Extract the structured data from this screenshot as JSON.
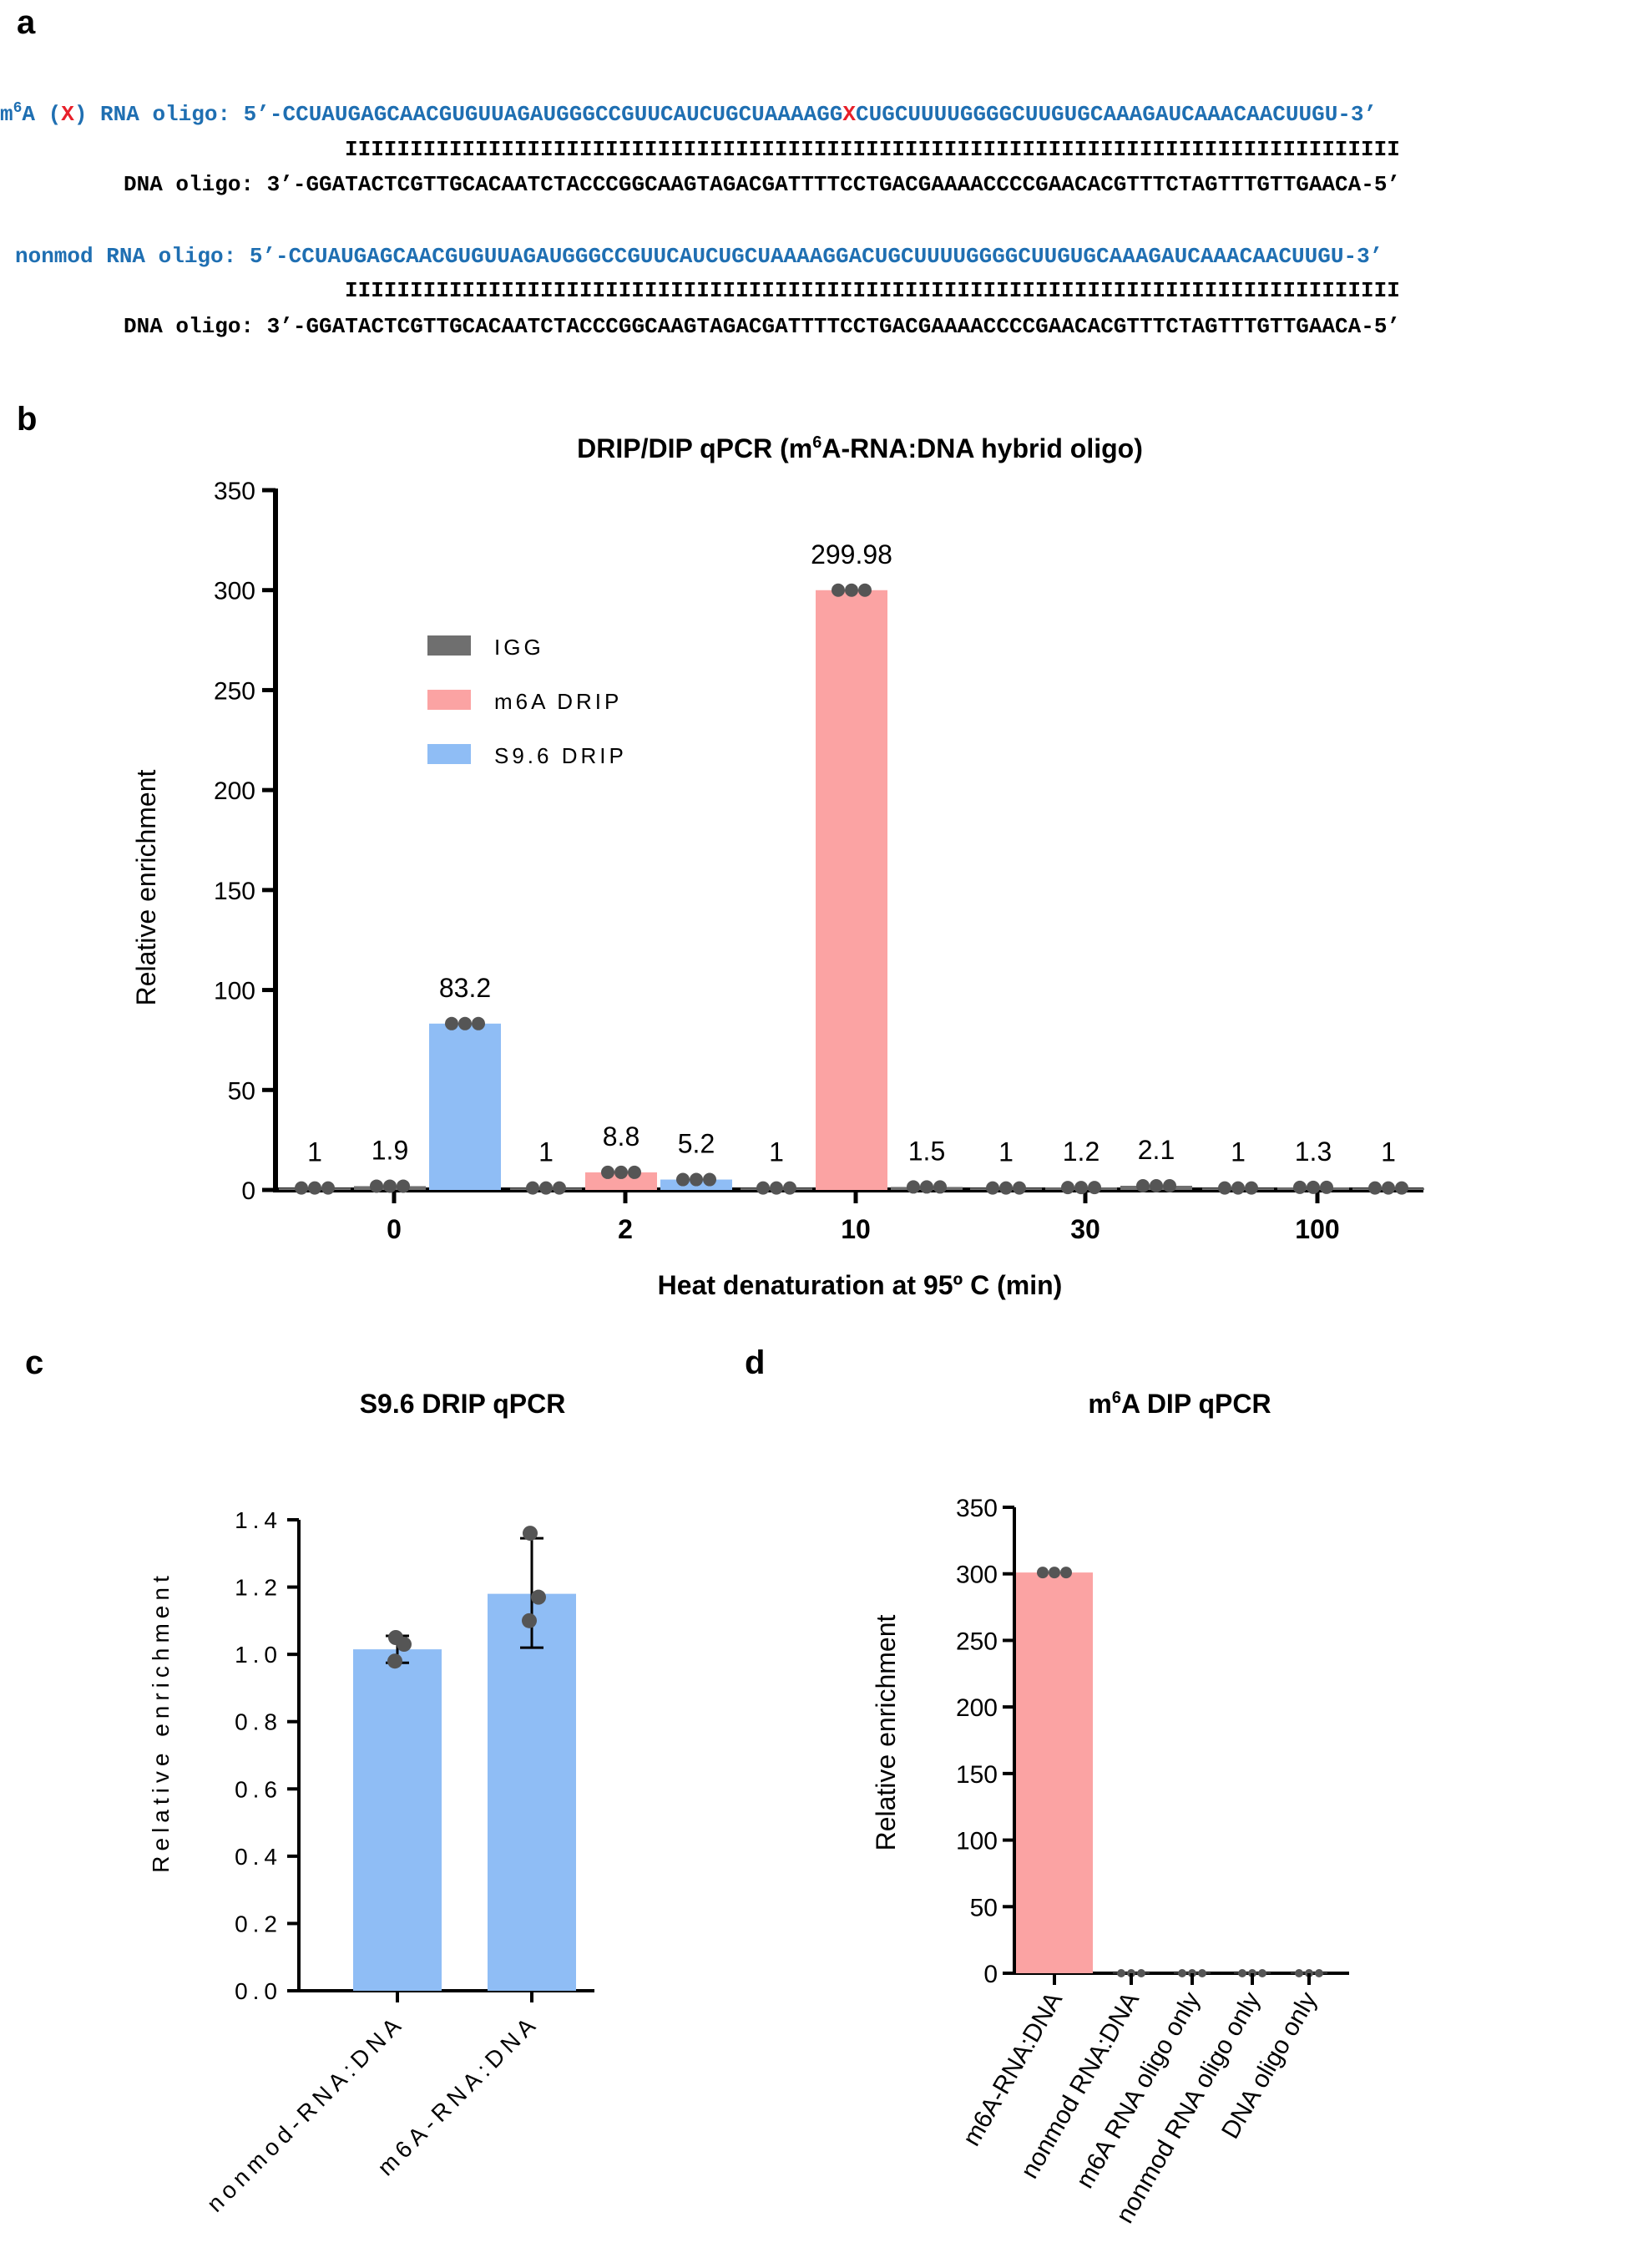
{
  "panel_a": {
    "label": "a",
    "pairs": [
      {
        "rna_prefix_1": "m",
        "rna_prefix_sup": "6",
        "rna_prefix_2": "A (",
        "rna_marker": "X",
        "rna_prefix_3": ") RNA oligo: 5’-",
        "rna_seq_a": "CCUAUGAGCAACGUGUUAGAUGGGCCGUUCAUCUGCUAAAAGG",
        "rna_seq_mark": "X",
        "rna_seq_b": "CUGCUUUUGGGGCUUGUGCAAAGAUCAAACAACUUGU-3’",
        "bars": "IIIIIIIIIIIIIIIIIIIIIIIIIIIIIIIIIIIIIIIIIIIIIIIIIIIIIIIIIIIIIIIIIIIIIIIIIIIIIIIII",
        "dna_label": "DNA oligo: 3’-",
        "dna_seq": "GGATACTCGTTGCACAATCTACCCGGCAAGTAGACGATTTTCCTGACGAAAACCCCGAACACGTTTCTAGTTTGTTGAACA-5’"
      },
      {
        "rna_label": "nonmod RNA oligo: 5’-",
        "rna_seq": "CCUAUGAGCAACGUGUUAGAUGGGCCGUUCAUCUGCUAAAAGGACUGCUUUUGGGGCUUGUGCAAAGAUCAAACAACUUGU-3’",
        "bars": "IIIIIIIIIIIIIIIIIIIIIIIIIIIIIIIIIIIIIIIIIIIIIIIIIIIIIIIIIIIIIIIIIIIIIIIIIIIIIIIII",
        "dna_label": "DNA oligo: 3’-",
        "dna_seq": "GGATACTCGTTGCACAATCTACCCGGCAAGTAGACGATTTTCCTGACGAAAACCCCGAACACGTTTCTAGTTTGTTGAACA-5’"
      }
    ]
  },
  "colors": {
    "igg": "#6f6f6f",
    "m6a": "#fba3a3",
    "s96": "#8fbdf5",
    "dot": "#555555",
    "blue_text": "#1f6fb2",
    "red": "#e8202a"
  },
  "chart_data": [
    {
      "panel": "b",
      "type": "bar",
      "title_pre": "DRIP/DIP qPCR (m",
      "title_sup": "6",
      "title_post": "A-RNA:DNA hybrid oligo)",
      "xlabel": "Heat denaturation at 95º C (min)",
      "ylabel": "Relative enrichment",
      "ylim": [
        0,
        350
      ],
      "yticks": [
        "0",
        "50",
        "100",
        "150",
        "200",
        "250",
        "300",
        "350"
      ],
      "categories": [
        "0",
        "2",
        "10",
        "30",
        "100"
      ],
      "legend": [
        "IGG",
        "m6A DRIP",
        "S9.6 DRIP"
      ],
      "series": [
        {
          "name": "IGG",
          "values": [
            1,
            1,
            1,
            1,
            1
          ]
        },
        {
          "name": "m6A DRIP",
          "values": [
            1.9,
            8.8,
            299.98,
            1.2,
            1.3
          ]
        },
        {
          "name": "S9.6 DRIP",
          "values": [
            83.2,
            5.2,
            1.5,
            2.1,
            1
          ]
        }
      ],
      "data_labels": [
        [
          "1",
          "1.9",
          "83.2"
        ],
        [
          "1",
          "8.8",
          "5.2"
        ],
        [
          "1",
          "299.98",
          "1.5"
        ],
        [
          "1",
          "1.2",
          "2.1"
        ],
        [
          "1",
          "1.3",
          "1"
        ]
      ]
    },
    {
      "panel": "c",
      "type": "bar",
      "title": "S9.6 DRIP qPCR",
      "ylabel": "Relative enrichment",
      "ylim": [
        0,
        1.4
      ],
      "yticks": [
        "0.0",
        "0.2",
        "0.4",
        "0.6",
        "0.8",
        "1.0",
        "1.2",
        "1.4"
      ],
      "categories": [
        "nonmod-RNA:DNA",
        "m6A-RNA:DNA"
      ],
      "values": [
        1.015,
        1.18
      ],
      "errors": [
        [
          0.975,
          1.055
        ],
        [
          1.02,
          1.345
        ]
      ],
      "points": [
        [
          1.05,
          1.03,
          0.98
        ],
        [
          1.36,
          1.17,
          1.1
        ]
      ]
    },
    {
      "panel": "d",
      "type": "bar",
      "title_pre": "m",
      "title_sup": "6",
      "title_post": "A DIP qPCR",
      "ylabel": "Relative enrichment",
      "ylim": [
        0,
        350
      ],
      "yticks": [
        "0",
        "50",
        "100",
        "150",
        "200",
        "250",
        "300",
        "350"
      ],
      "categories": [
        "m6A-RNA:DNA",
        "nonmod RNA:DNA",
        "m6A RNA oligo only",
        "nonmod RNA oligo only",
        "DNA oligo only"
      ],
      "values": [
        301,
        0.5,
        0.5,
        0.5,
        0.5
      ]
    }
  ]
}
